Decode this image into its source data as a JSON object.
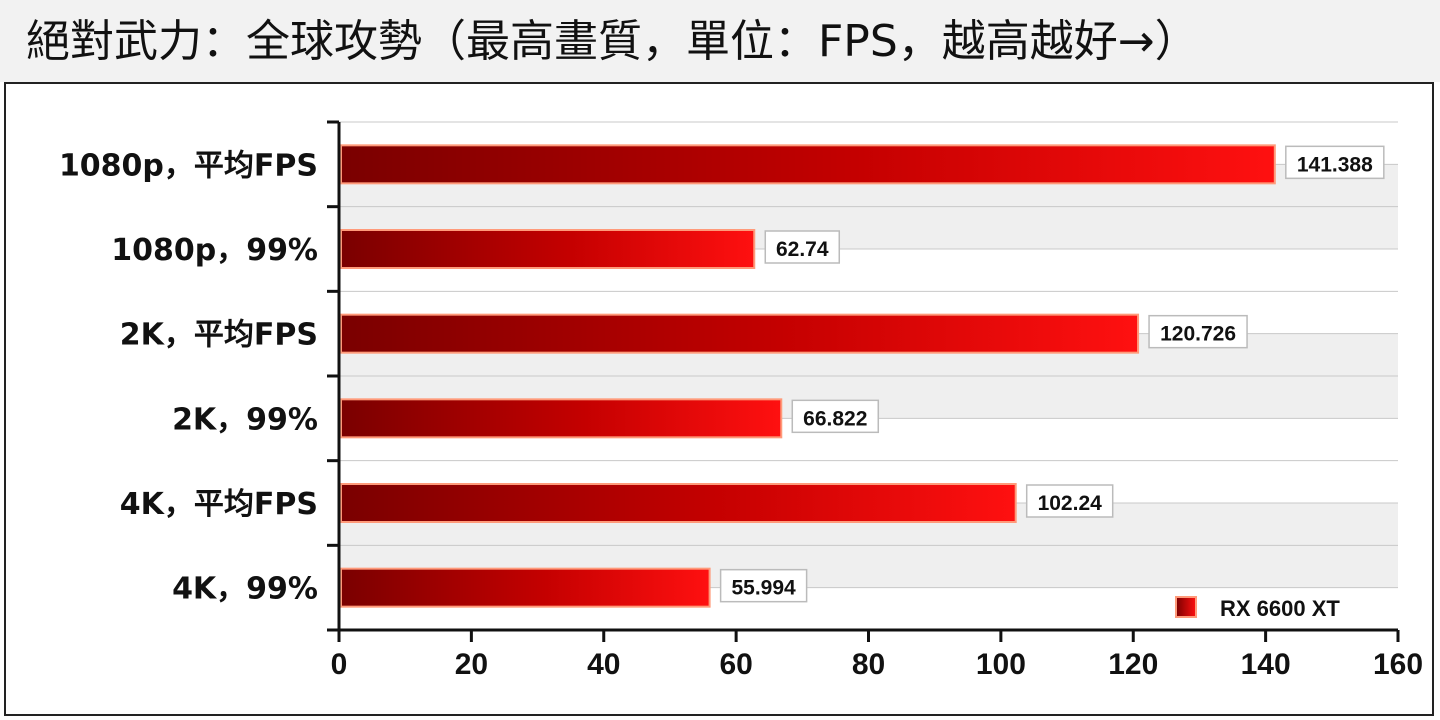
{
  "title": "絕對武力：全球攻勢（最高畫質，單位：FPS，越高越好→）",
  "chart_data": {
    "type": "bar",
    "orientation": "horizontal",
    "categories": [
      "1080p，平均FPS",
      "1080p，99%",
      "2K，平均FPS",
      "2K，99%",
      "4K，平均FPS",
      "4K，99%"
    ],
    "series": [
      {
        "name": "RX 6600 XT",
        "values": [
          141.388,
          62.74,
          120.726,
          66.822,
          102.24,
          55.994
        ]
      }
    ],
    "value_labels": [
      "141.388",
      "62.74",
      "120.726",
      "66.822",
      "102.24",
      "55.994"
    ],
    "xlim": [
      0,
      160
    ],
    "xticks": [
      "0",
      "20",
      "40",
      "60",
      "80",
      "100",
      "120",
      "140",
      "160"
    ],
    "grid": true,
    "legend": "bottom-right",
    "bar_color": "#e00000"
  }
}
